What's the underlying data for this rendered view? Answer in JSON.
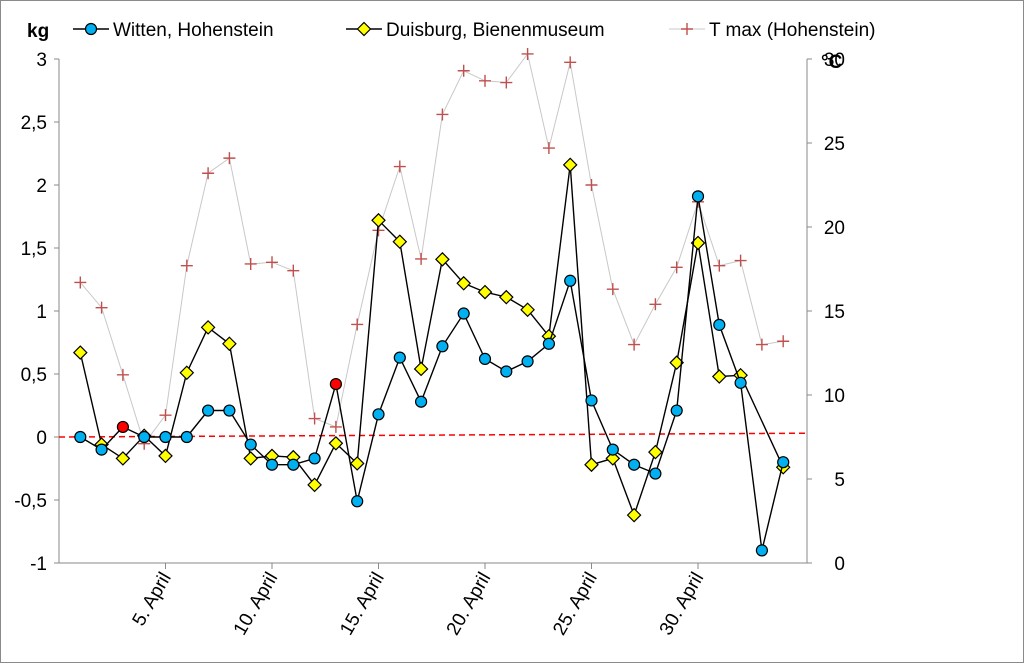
{
  "chart_data": {
    "type": "line",
    "y_left_label": "kg",
    "y_right_label": "°C",
    "ylim_left": [
      -1,
      3
    ],
    "ylim_right": [
      0,
      30
    ],
    "y_left_ticks": [
      "-1",
      "-0,5",
      "0",
      "0,5",
      "1",
      "1,5",
      "2",
      "2,5",
      "3"
    ],
    "y_right_ticks": [
      "0",
      "5",
      "10",
      "15",
      "20",
      "25",
      "30"
    ],
    "x_tick_labels": [
      {
        "day": 5,
        "label": "5. April"
      },
      {
        "day": 10,
        "label": "10. April"
      },
      {
        "day": 15,
        "label": "15. April"
      },
      {
        "day": 20,
        "label": "20. April"
      },
      {
        "day": 25,
        "label": "25. April"
      },
      {
        "day": 30,
        "label": "30. April"
      }
    ],
    "x_days": [
      1,
      2,
      3,
      4,
      5,
      6,
      7,
      8,
      9,
      10,
      11,
      12,
      13,
      14,
      15,
      16,
      17,
      18,
      19,
      20,
      21,
      22,
      23,
      24,
      25,
      26,
      27,
      28,
      29,
      30,
      31,
      32,
      33,
      34
    ],
    "grid": false,
    "legend_position": "top",
    "series": [
      {
        "name": "Witten, Hohenstein",
        "axis": "left",
        "marker": "circle",
        "color": "#00b0f0",
        "line_color": "#000000",
        "highlight_color": "#ff0000",
        "highlight_days": [],
        "values": [
          0,
          -0.1,
          null,
          0,
          0,
          0,
          0.21,
          0.21,
          -0.06,
          -0.22,
          -0.22,
          -0.17,
          null,
          -0.51,
          0.18,
          0.63,
          0.28,
          0.72,
          0.98,
          0.62,
          0.52,
          0.6,
          0.74,
          1.24,
          0.29,
          -0.1,
          -0.22,
          -0.29,
          0.21,
          1.91,
          0.89,
          0.43,
          -0.9,
          -0.2
        ]
      },
      {
        "name": "Duisburg, Bienenmuseum",
        "axis": "left",
        "marker": "diamond",
        "color": "#ffff00",
        "line_color": "#000000",
        "values": [
          0.67,
          -0.06,
          -0.17,
          0.01,
          -0.15,
          0.51,
          0.87,
          0.74,
          -0.17,
          -0.15,
          -0.16,
          -0.38,
          -0.05,
          -0.21,
          1.72,
          1.55,
          0.54,
          1.41,
          1.22,
          1.15,
          1.11,
          1.01,
          0.8,
          2.16,
          -0.22,
          -0.17,
          -0.62,
          -0.12,
          0.59,
          1.54,
          0.48,
          0.49,
          null,
          -0.24
        ]
      },
      {
        "name": "T max (Hohenstein)",
        "axis": "right",
        "marker": "plus",
        "color": "#c0504d",
        "line_color": "#c8c8c8",
        "values": [
          16.7,
          15.2,
          11.2,
          7.1,
          8.8,
          17.7,
          23.2,
          24.1,
          17.8,
          17.9,
          17.4,
          8.6,
          8.1,
          14.2,
          19.8,
          23.6,
          18.1,
          26.7,
          29.3,
          28.7,
          28.6,
          30.3,
          24.7,
          29.8,
          22.5,
          16.3,
          13.0,
          15.4,
          17.6,
          21.5,
          17.7,
          18.0,
          13.0,
          13.2
        ]
      }
    ],
    "highlighted_points": [
      {
        "day": 3,
        "value": 0.08,
        "color": "#ff0000"
      },
      {
        "day": 13,
        "value": 0.42,
        "color": "#ff0000"
      }
    ],
    "reference_line": {
      "axis": "left",
      "from_value": 0.0,
      "to_value": 0.03,
      "color": "#ff0000",
      "style": "dashed"
    }
  }
}
